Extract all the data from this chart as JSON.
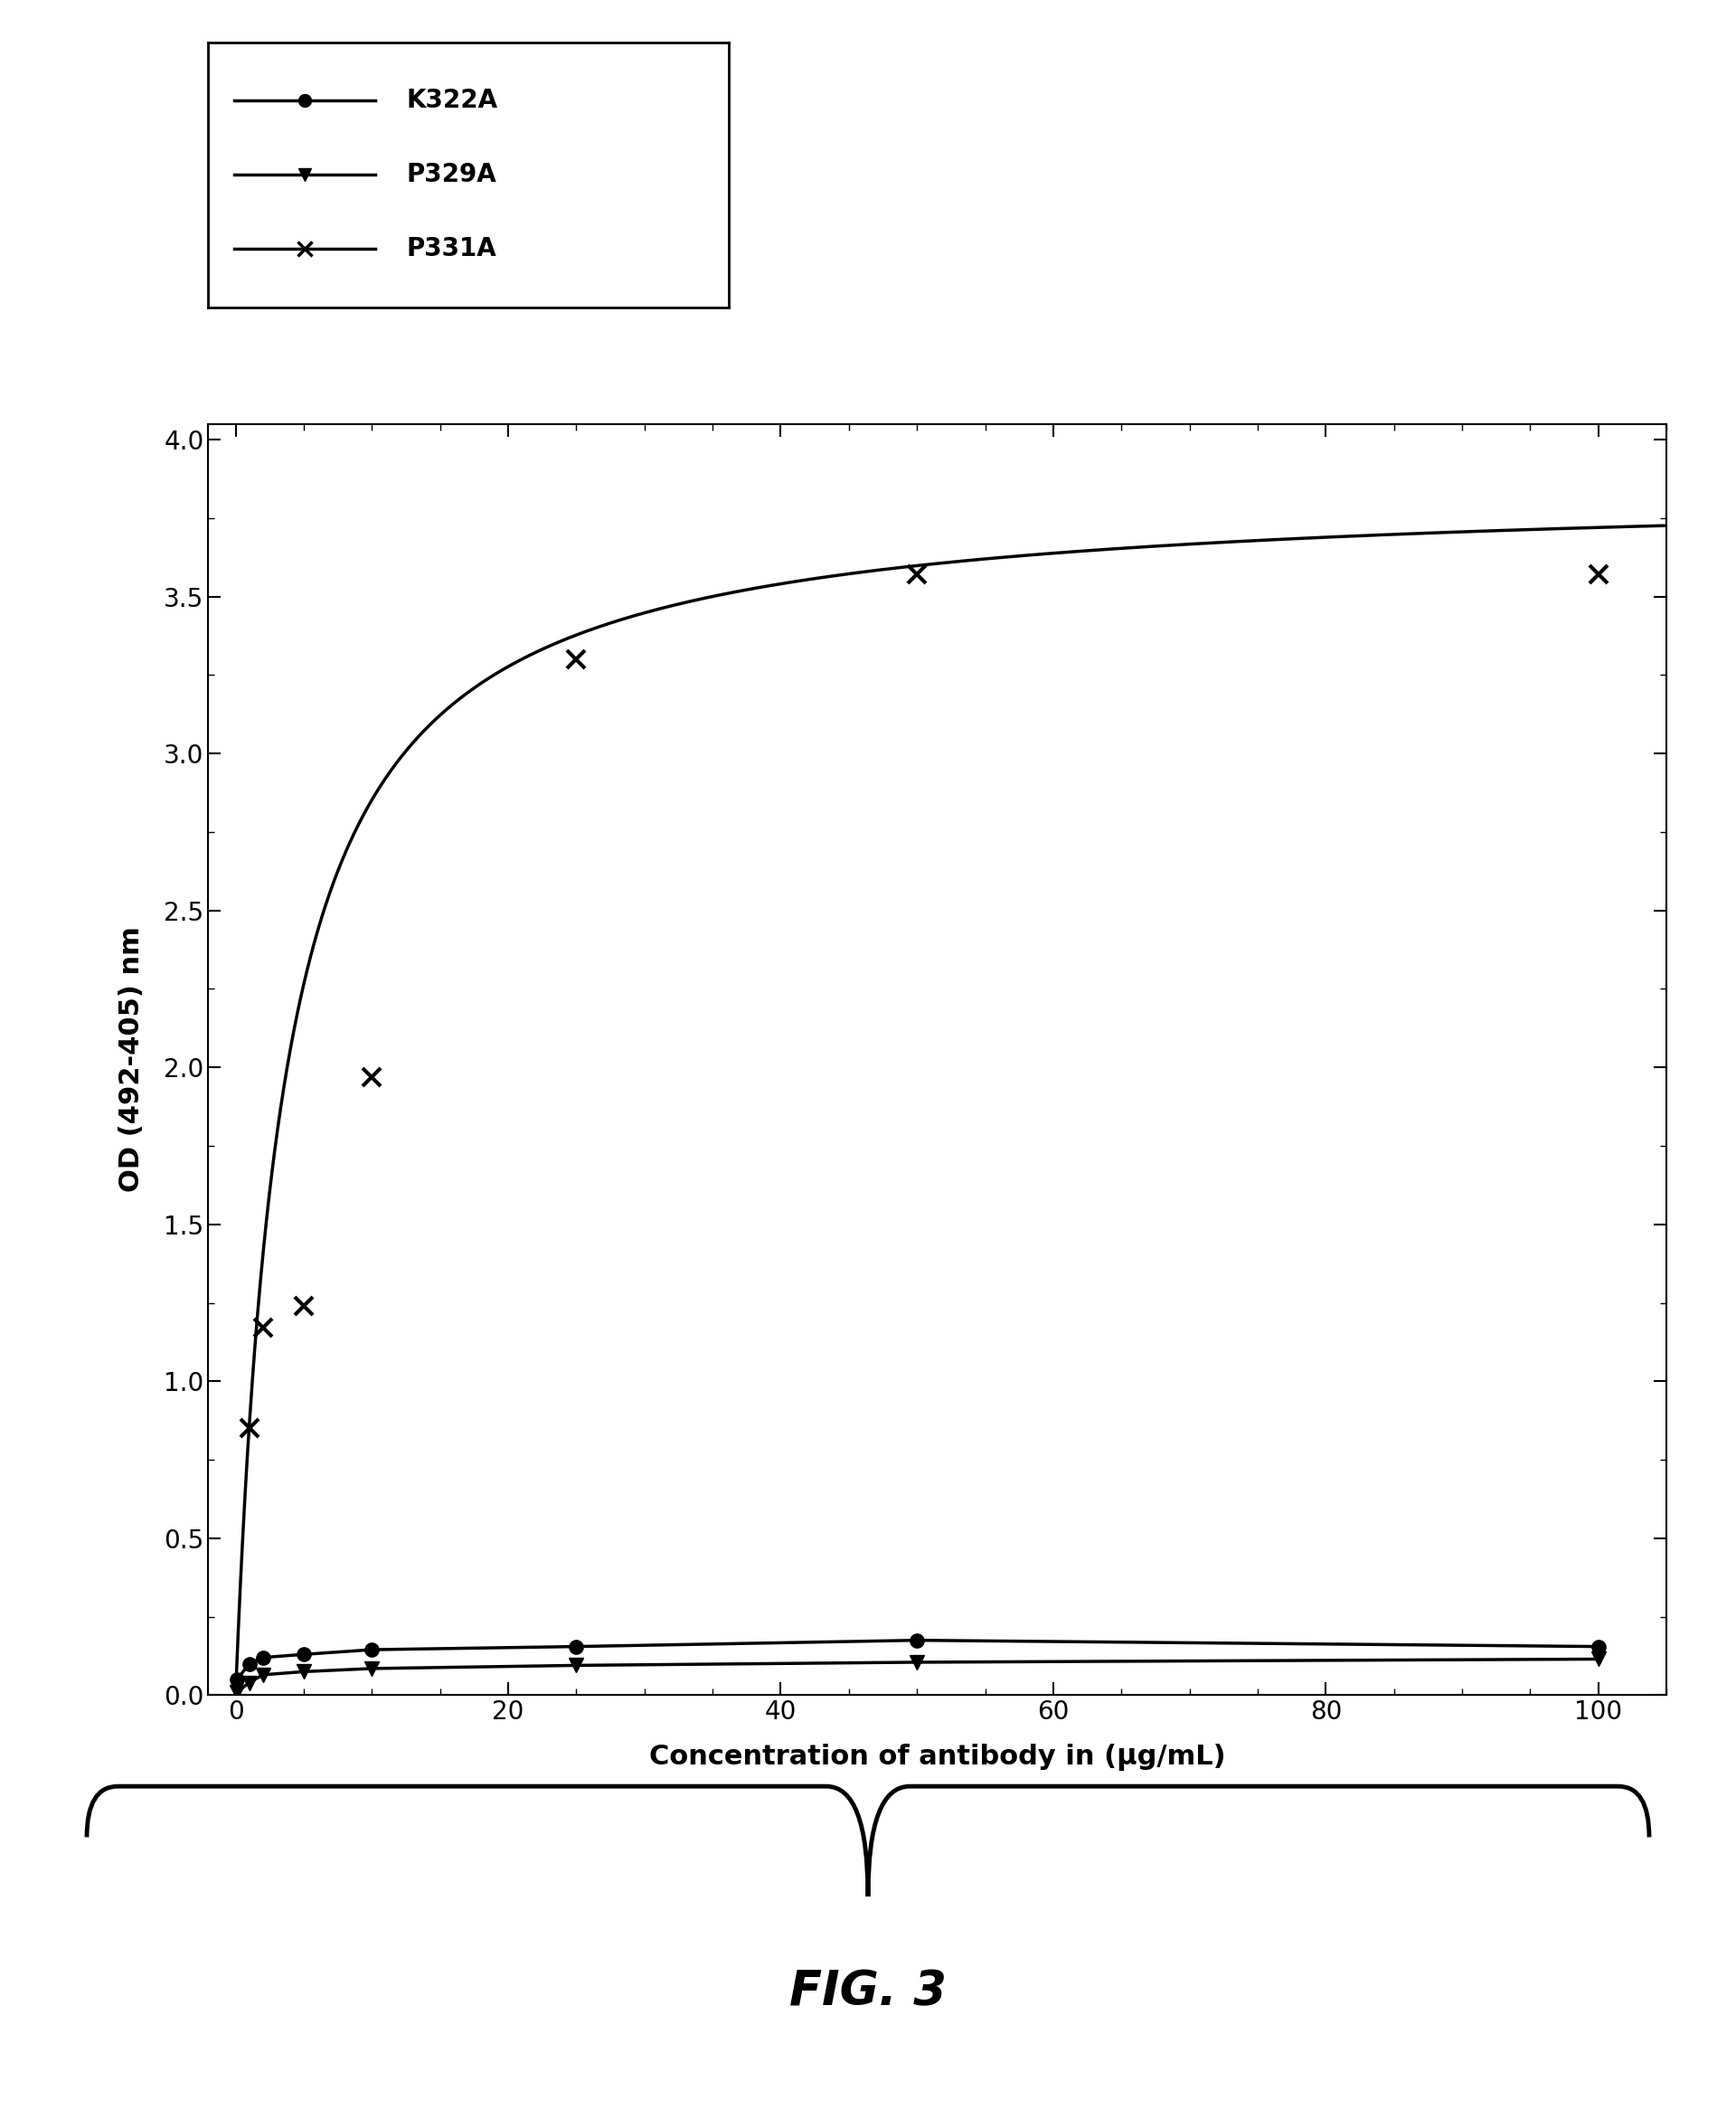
{
  "K322A_x": [
    0.1,
    1,
    2,
    5,
    10,
    25,
    50,
    100
  ],
  "K322A_y": [
    0.05,
    0.1,
    0.12,
    0.13,
    0.145,
    0.155,
    0.175,
    0.155
  ],
  "P329A_x": [
    0.1,
    1,
    2,
    5,
    10,
    25,
    50,
    100
  ],
  "P329A_y": [
    0.01,
    0.04,
    0.065,
    0.075,
    0.085,
    0.095,
    0.105,
    0.115
  ],
  "P331A_x": [
    1,
    2,
    5,
    10,
    25,
    50,
    100
  ],
  "P331A_y": [
    0.85,
    1.17,
    1.24,
    1.97,
    3.3,
    3.57,
    3.57
  ],
  "curve_Vmax": 3.85,
  "curve_Km": 3.5,
  "xlim": [
    -2,
    105
  ],
  "ylim": [
    0,
    4.05
  ],
  "xticks": [
    0,
    20,
    40,
    60,
    80,
    100
  ],
  "yticks": [
    0,
    0.5,
    1.0,
    1.5,
    2.0,
    2.5,
    3.0,
    3.5,
    4.0
  ],
  "xlabel": "Concentration of antibody in (μg/mL)",
  "ylabel": "OD (492-405) nm",
  "fig_label": "FIG. 3",
  "bg_color": "#ffffff",
  "line_color": "#000000",
  "line_width": 2.5,
  "xlabel_fontsize": 22,
  "ylabel_fontsize": 22,
  "tick_fontsize": 20,
  "legend_fontsize": 20,
  "fig_label_fontsize": 38
}
